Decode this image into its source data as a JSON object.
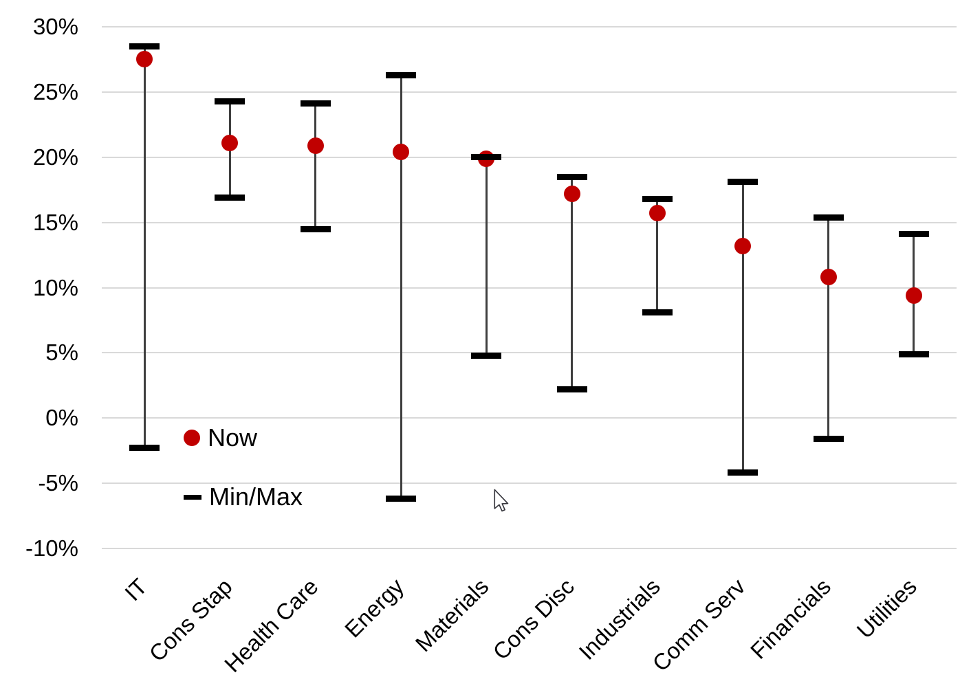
{
  "chart_data": {
    "type": "dot-range",
    "title": "",
    "xlabel": "",
    "ylabel": "",
    "categories": [
      "IT",
      "Cons Stap",
      "Health Care",
      "Energy",
      "Materials",
      "Cons Disc",
      "Industrials",
      "Comm Serv",
      "Financials",
      "Utilities"
    ],
    "series": [
      {
        "name": "Now",
        "marker": "circle",
        "color": "#c00000",
        "values": [
          27.5,
          21.1,
          20.9,
          20.4,
          19.9,
          17.2,
          15.7,
          13.2,
          10.8,
          9.4
        ]
      },
      {
        "name": "Max",
        "marker": "dash",
        "color": "#000000",
        "values": [
          28.5,
          24.3,
          24.1,
          26.3,
          20.0,
          18.5,
          16.8,
          18.1,
          15.4,
          14.1
        ]
      },
      {
        "name": "Min",
        "marker": "dash",
        "color": "#000000",
        "values": [
          -2.3,
          16.9,
          14.5,
          -6.2,
          4.8,
          2.2,
          8.1,
          -4.2,
          -1.6,
          4.9
        ]
      }
    ],
    "ylim": [
      -10,
      30
    ],
    "ytick_step": 5,
    "ytick_labels": [
      "30%",
      "25%",
      "20%",
      "15%",
      "10%",
      "5%",
      "0%",
      "-5%",
      "-10%"
    ],
    "grid": true,
    "legend_position": "inside-left-bottom",
    "legend": [
      {
        "label": "Now",
        "swatch": "circle",
        "color": "#c00000"
      },
      {
        "label": "Min/Max",
        "swatch": "dash",
        "color": "#000000"
      }
    ],
    "colors": {
      "grid": "#d9d9d9",
      "range_line": "#3f3f3f",
      "cap": "#000000",
      "now_dot": "#c00000",
      "text": "#000000",
      "background": "#ffffff"
    }
  },
  "cursor": {
    "icon": "arrow-cursor"
  }
}
